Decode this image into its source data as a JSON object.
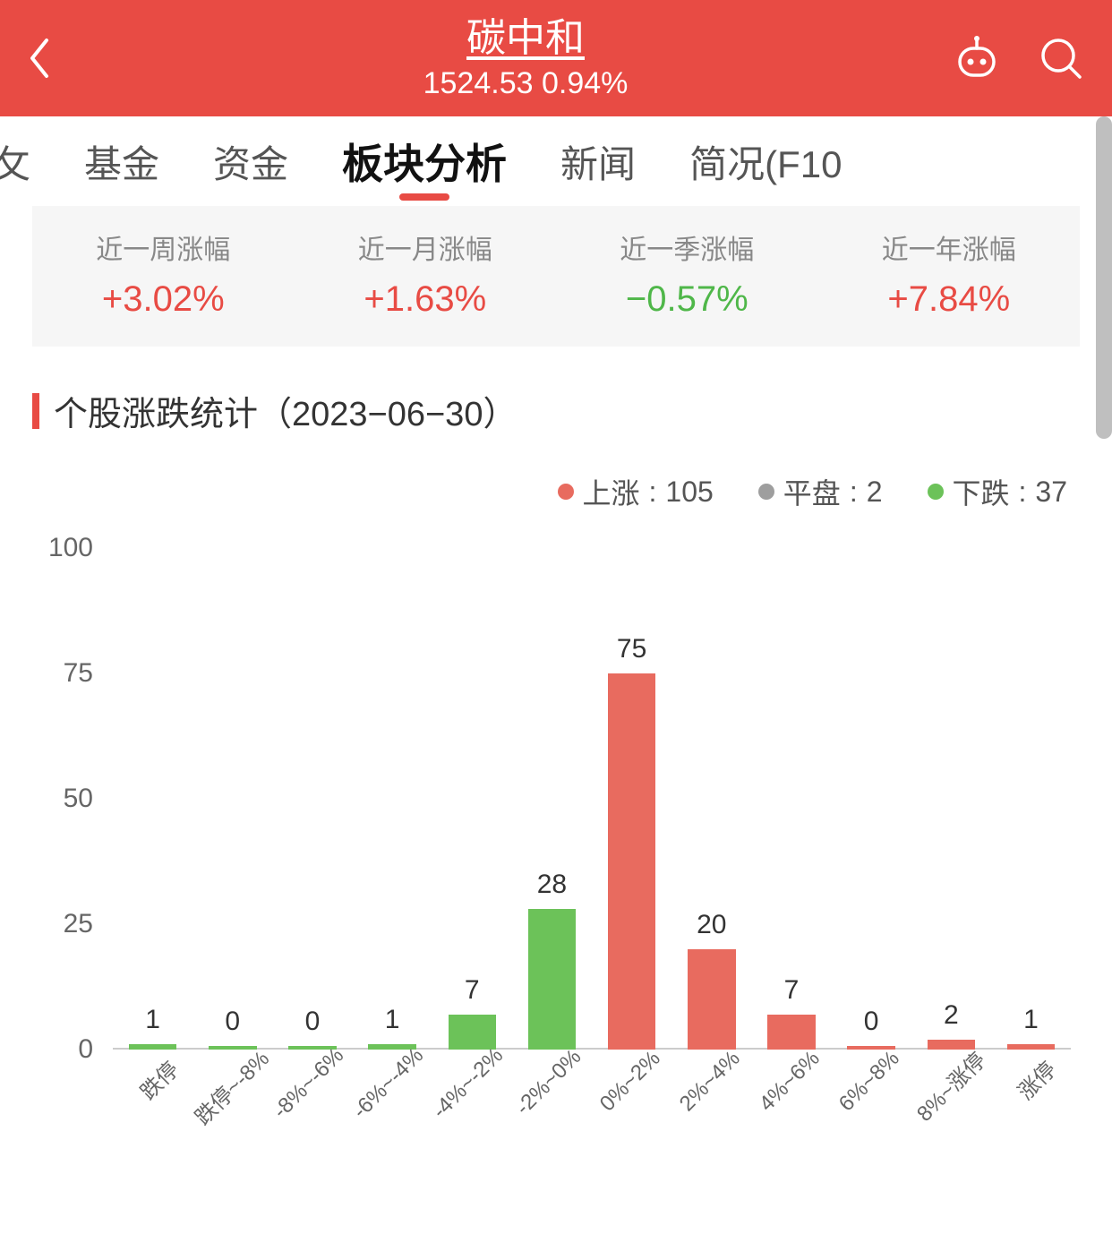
{
  "header": {
    "title": "碳中和",
    "price": "1524.53",
    "change": "0.94%",
    "bg_color": "#e84b44"
  },
  "tabs": {
    "items": [
      {
        "label": "基金",
        "active": false
      },
      {
        "label": "资金",
        "active": false
      },
      {
        "label": "板块分析",
        "active": true
      },
      {
        "label": "新闻",
        "active": false
      },
      {
        "label": "简况(F10",
        "active": false
      }
    ],
    "partial_left_label": "攵"
  },
  "stats": [
    {
      "label": "近一周涨幅",
      "value": "+3.02%",
      "dir": "pos"
    },
    {
      "label": "近一月涨幅",
      "value": "+1.63%",
      "dir": "pos"
    },
    {
      "label": "近一季涨幅",
      "value": "−0.57%",
      "dir": "neg"
    },
    {
      "label": "近一年涨幅",
      "value": "+7.84%",
      "dir": "pos"
    }
  ],
  "section": {
    "title": "个股涨跌统计（2023−06−30）"
  },
  "legend": {
    "items": [
      {
        "label": "上涨",
        "value": "105",
        "color": "#e86b5f"
      },
      {
        "label": "平盘",
        "value": "2",
        "color": "#9e9e9e"
      },
      {
        "label": "下跌",
        "value": "37",
        "color": "#6cc259"
      }
    ]
  },
  "chart": {
    "type": "bar",
    "ylim": [
      0,
      100
    ],
    "yticks": [
      0,
      25,
      50,
      75,
      100
    ],
    "categories": [
      "跌停",
      "跌停~-8%",
      "-8%~-6%",
      "-6%~-4%",
      "-4%~-2%",
      "-2%~0%",
      "0%~2%",
      "2%~4%",
      "4%~6%",
      "6%~8%",
      "8%~涨停",
      "涨停"
    ],
    "values": [
      1,
      0,
      0,
      1,
      7,
      28,
      75,
      20,
      7,
      0,
      2,
      1
    ],
    "colors": [
      "#6cc259",
      "#6cc259",
      "#6cc259",
      "#6cc259",
      "#6cc259",
      "#6cc259",
      "#e86b5f",
      "#e86b5f",
      "#e86b5f",
      "#e86b5f",
      "#e86b5f",
      "#e86b5f"
    ],
    "value_fontsize": 30,
    "axis_fontsize": 30,
    "xlabel_fontsize": 24,
    "baseline_color": "#cccccc",
    "bar_width": 0.6,
    "background_color": "#ffffff",
    "label_color": "#333333",
    "axis_color": "#666666"
  },
  "colors": {
    "positive": "#e84b44",
    "negative": "#4fb749"
  }
}
